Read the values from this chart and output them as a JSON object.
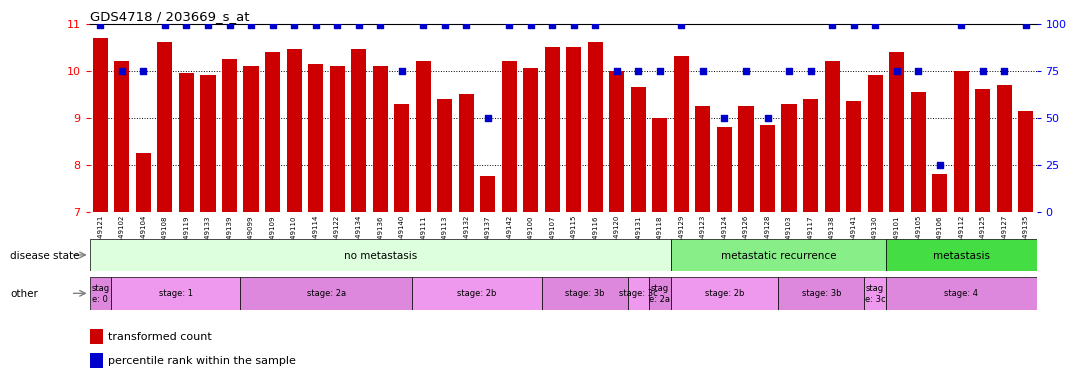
{
  "title": "GDS4718 / 203669_s_at",
  "samples": [
    "GSM549121",
    "GSM549102",
    "GSM549104",
    "GSM549108",
    "GSM549119",
    "GSM549133",
    "GSM549139",
    "GSM549099",
    "GSM549109",
    "GSM549110",
    "GSM549114",
    "GSM549122",
    "GSM549134",
    "GSM549136",
    "GSM549140",
    "GSM549111",
    "GSM549113",
    "GSM549132",
    "GSM549137",
    "GSM549142",
    "GSM549100",
    "GSM549107",
    "GSM549115",
    "GSM549116",
    "GSM549120",
    "GSM549131",
    "GSM549118",
    "GSM549129",
    "GSM549123",
    "GSM549124",
    "GSM549126",
    "GSM549128",
    "GSM549103",
    "GSM549117",
    "GSM549138",
    "GSM549141",
    "GSM549130",
    "GSM549101",
    "GSM549105",
    "GSM549106",
    "GSM549112",
    "GSM549125",
    "GSM549127",
    "GSM549135"
  ],
  "bar_values": [
    10.7,
    10.2,
    8.25,
    10.6,
    9.95,
    9.9,
    10.25,
    10.1,
    10.4,
    10.45,
    10.15,
    10.1,
    10.45,
    10.1,
    9.3,
    10.2,
    9.4,
    9.5,
    7.75,
    10.2,
    10.05,
    10.5,
    10.5,
    10.6,
    10.0,
    9.65,
    9.0,
    10.3,
    9.25,
    8.8,
    9.25,
    8.85,
    9.3,
    9.4,
    10.2,
    9.35,
    9.9,
    10.4,
    9.55,
    7.8,
    10.0,
    9.6,
    9.7,
    9.15
  ],
  "percentile_values": [
    99,
    75,
    75,
    99,
    99,
    99,
    99,
    99,
    99,
    99,
    99,
    99,
    99,
    99,
    75,
    99,
    99,
    99,
    50,
    99,
    99,
    99,
    99,
    99,
    75,
    75,
    75,
    99,
    75,
    50,
    75,
    50,
    75,
    75,
    99,
    99,
    99,
    75,
    75,
    25,
    99,
    75,
    75,
    99
  ],
  "ylim_min": 7,
  "ylim_max": 11,
  "yticks": [
    7,
    8,
    9,
    10,
    11
  ],
  "right_yticks": [
    0,
    25,
    50,
    75,
    100
  ],
  "bar_color": "#cc0000",
  "dot_color": "#0000cc",
  "background_color": "#ffffff",
  "disease_state_groups": [
    {
      "label": "no metastasis",
      "start": 0,
      "end": 27,
      "color": "#ddffdd"
    },
    {
      "label": "metastatic recurrence",
      "start": 27,
      "end": 37,
      "color": "#88ee88"
    },
    {
      "label": "metastasis",
      "start": 37,
      "end": 44,
      "color": "#44dd44"
    }
  ],
  "other_groups": [
    {
      "label": "stag\ne: 0",
      "start": 0,
      "end": 1,
      "color": "#dd88dd"
    },
    {
      "label": "stage: 1",
      "start": 1,
      "end": 7,
      "color": "#ee99ee"
    },
    {
      "label": "stage: 2a",
      "start": 7,
      "end": 15,
      "color": "#dd88dd"
    },
    {
      "label": "stage: 2b",
      "start": 15,
      "end": 21,
      "color": "#ee99ee"
    },
    {
      "label": "stage: 3b",
      "start": 21,
      "end": 25,
      "color": "#dd88dd"
    },
    {
      "label": "stage: 3c",
      "start": 25,
      "end": 26,
      "color": "#ee99ee"
    },
    {
      "label": "stag\ne: 2a",
      "start": 26,
      "end": 27,
      "color": "#dd88dd"
    },
    {
      "label": "stage: 2b",
      "start": 27,
      "end": 32,
      "color": "#ee99ee"
    },
    {
      "label": "stage: 3b",
      "start": 32,
      "end": 36,
      "color": "#dd88dd"
    },
    {
      "label": "stag\ne: 3c",
      "start": 36,
      "end": 37,
      "color": "#ee99ee"
    },
    {
      "label": "stage: 4",
      "start": 37,
      "end": 44,
      "color": "#dd88dd"
    }
  ],
  "legend_items": [
    {
      "label": "transformed count",
      "color": "#cc0000"
    },
    {
      "label": "percentile rank within the sample",
      "color": "#0000cc"
    }
  ]
}
